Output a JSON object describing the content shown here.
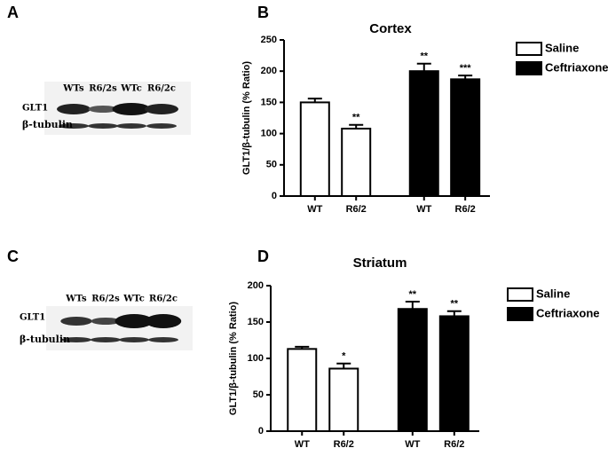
{
  "panel_labels": [
    "A",
    "B",
    "C",
    "D"
  ],
  "blots": [
    {
      "lanes": [
        "WTs",
        "R6/2s",
        "WTc",
        "R6/2c"
      ],
      "rows": [
        "GLT1",
        "β-tubulin"
      ]
    },
    {
      "lanes": [
        "WTs",
        "R6/2s",
        "WTc",
        "R6/2c"
      ],
      "rows": [
        "GLT1",
        "β-tubulin"
      ]
    }
  ],
  "chart_data": [
    {
      "type": "bar",
      "title": "Cortex",
      "y_label": "GLT1/β-tubulin (% Ratio)",
      "categories": [
        "WT",
        "R6/2",
        "WT",
        "R6/2"
      ],
      "series": [
        {
          "name": "Saline",
          "color": "#ffffff",
          "values": [
            150,
            108,
            null,
            null
          ],
          "errors": [
            6,
            6,
            null,
            null
          ],
          "annotations": [
            null,
            "**",
            null,
            null
          ]
        },
        {
          "name": "Ceftriaxone",
          "color": "#000000",
          "values": [
            null,
            null,
            200,
            187
          ],
          "errors": [
            null,
            null,
            12,
            6
          ],
          "annotations": [
            null,
            null,
            "**",
            "***"
          ]
        }
      ],
      "ylim": [
        0,
        250
      ],
      "yticks": [
        0,
        50,
        100,
        150,
        200,
        250
      ],
      "legend": "upper right"
    },
    {
      "type": "bar",
      "title": "Striatum",
      "y_label": "GLT1/β-tubulin (% Ratio)",
      "categories": [
        "WT",
        "R6/2",
        "WT",
        "R6/2"
      ],
      "series": [
        {
          "name": "Saline",
          "color": "#ffffff",
          "values": [
            113,
            86,
            null,
            null
          ],
          "errors": [
            3,
            7,
            null,
            null
          ],
          "annotations": [
            null,
            "*",
            null,
            null
          ]
        },
        {
          "name": "Ceftriaxone",
          "color": "#000000",
          "values": [
            null,
            null,
            168,
            158
          ],
          "errors": [
            null,
            null,
            10,
            7
          ],
          "annotations": [
            null,
            null,
            "**",
            "**"
          ]
        }
      ],
      "ylim": [
        0,
        200
      ],
      "yticks": [
        0,
        50,
        100,
        150,
        200
      ],
      "legend": "upper right"
    }
  ]
}
